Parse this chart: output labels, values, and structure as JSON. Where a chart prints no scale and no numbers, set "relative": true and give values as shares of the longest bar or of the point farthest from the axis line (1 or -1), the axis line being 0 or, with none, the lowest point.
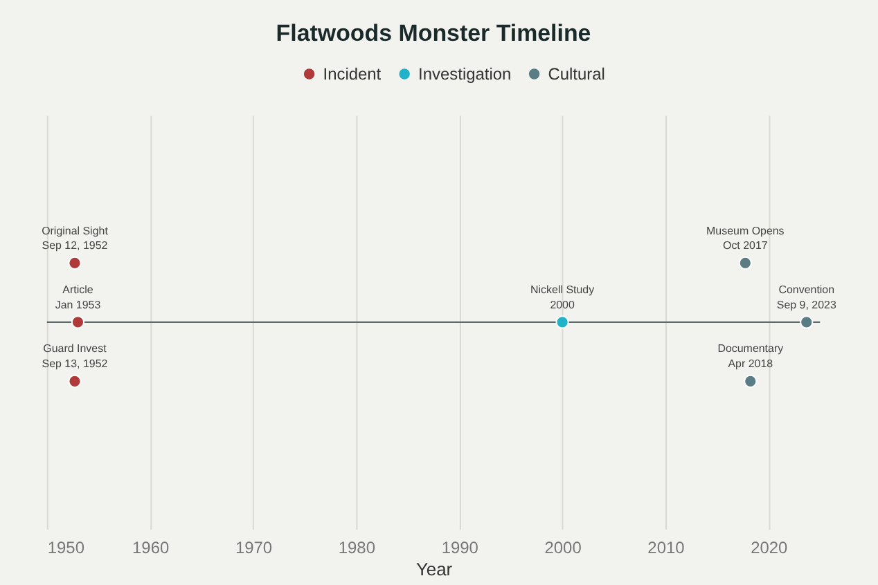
{
  "chart_data": {
    "type": "scatter",
    "title": "Flatwoods Monster Timeline",
    "xlabel": "Year",
    "relative": true,
    "marker": "circle",
    "legend": "top",
    "grid": "x",
    "xlim": [
      1950,
      2025
    ],
    "xticks": [
      1950,
      1960,
      1970,
      1980,
      1990,
      2000,
      2010,
      2020
    ],
    "series": [
      {
        "name": "Incident",
        "color": "#b03a3a",
        "x": [
          1952.7,
          1953.0,
          1952.7
        ],
        "values": [
          1,
          0,
          -1
        ]
      },
      {
        "name": "Investigation",
        "color": "#1fb2c9",
        "x": [
          2000.0
        ],
        "values": [
          0
        ]
      },
      {
        "name": "Cultural",
        "color": "#5a7d85",
        "x": [
          2017.75,
          2023.69,
          2018.25
        ],
        "values": [
          1,
          0,
          -1
        ]
      }
    ],
    "ref_lines": [
      {
        "axis": "y",
        "value": 0,
        "color": "#5f6b6b"
      }
    ],
    "annotations": [
      {
        "text": "Original Sight\nSep 12, 1952",
        "x": 1952.7,
        "y": 1
      },
      {
        "text": "Article\nJan 1953",
        "x": 1953.0,
        "y": 0
      },
      {
        "text": "Guard Invest\nSep 13, 1952",
        "x": 1952.7,
        "y": -1
      },
      {
        "text": "Nickell Study\n2000",
        "x": 2000.0,
        "y": 0
      },
      {
        "text": "Museum Opens\nOct 2017",
        "x": 2017.75,
        "y": 1
      },
      {
        "text": "Convention\nSep 9, 2023",
        "x": 2023.69,
        "y": 0
      },
      {
        "text": "Documentary\nApr 2018",
        "x": 2018.25,
        "y": -1
      }
    ]
  }
}
